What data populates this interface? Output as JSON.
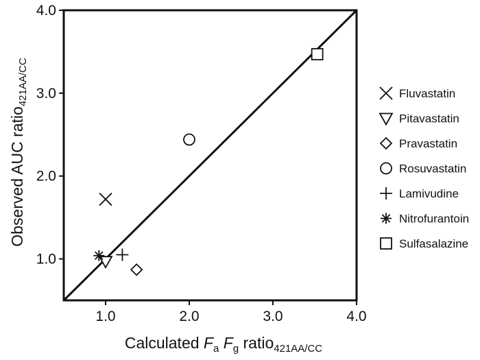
{
  "chart_data": {
    "type": "scatter",
    "title": "",
    "xlabel": {
      "parts": [
        {
          "t": "Calculated ",
          "s": "normal"
        },
        {
          "t": "F",
          "s": "italic"
        },
        {
          "t": "a",
          "s": "sub"
        },
        {
          "t": " ",
          "s": "normal"
        },
        {
          "t": "F",
          "s": "italic"
        },
        {
          "t": "g",
          "s": "sub"
        },
        {
          "t": " ratio",
          "s": "normal"
        },
        {
          "t": "421AA/CC",
          "s": "sub"
        }
      ]
    },
    "ylabel": {
      "parts": [
        {
          "t": "Observed AUC ratio",
          "s": "normal"
        },
        {
          "t": "421AA/CC",
          "s": "sub"
        }
      ]
    },
    "xlim": [
      0.5,
      4.0
    ],
    "ylim": [
      0.5,
      4.0
    ],
    "xticks": [
      1.0,
      2.0,
      3.0,
      4.0
    ],
    "yticks": [
      1.0,
      2.0,
      3.0,
      4.0
    ],
    "xtick_labels": [
      "1.0",
      "2.0",
      "3.0",
      "4.0"
    ],
    "ytick_labels": [
      "1.0",
      "2.0",
      "3.0",
      "4.0"
    ],
    "identity_line": true,
    "grid": false,
    "legend_position": "right",
    "series": [
      {
        "name": "Fluvastatin",
        "marker": "x",
        "x": 1.0,
        "y": 1.72
      },
      {
        "name": "Pitavastatin",
        "marker": "triangle",
        "x": 1.0,
        "y": 0.97
      },
      {
        "name": "Pravastatin",
        "marker": "diamond",
        "x": 1.37,
        "y": 0.87
      },
      {
        "name": "Rosuvastatin",
        "marker": "circle",
        "x": 2.0,
        "y": 2.44
      },
      {
        "name": "Lamivudine",
        "marker": "plus",
        "x": 1.2,
        "y": 1.05
      },
      {
        "name": "Nitrofurantoin",
        "marker": "asterisk",
        "x": 0.92,
        "y": 1.04
      },
      {
        "name": "Sulfasalazine",
        "marker": "square",
        "x": 3.53,
        "y": 3.47
      }
    ]
  }
}
